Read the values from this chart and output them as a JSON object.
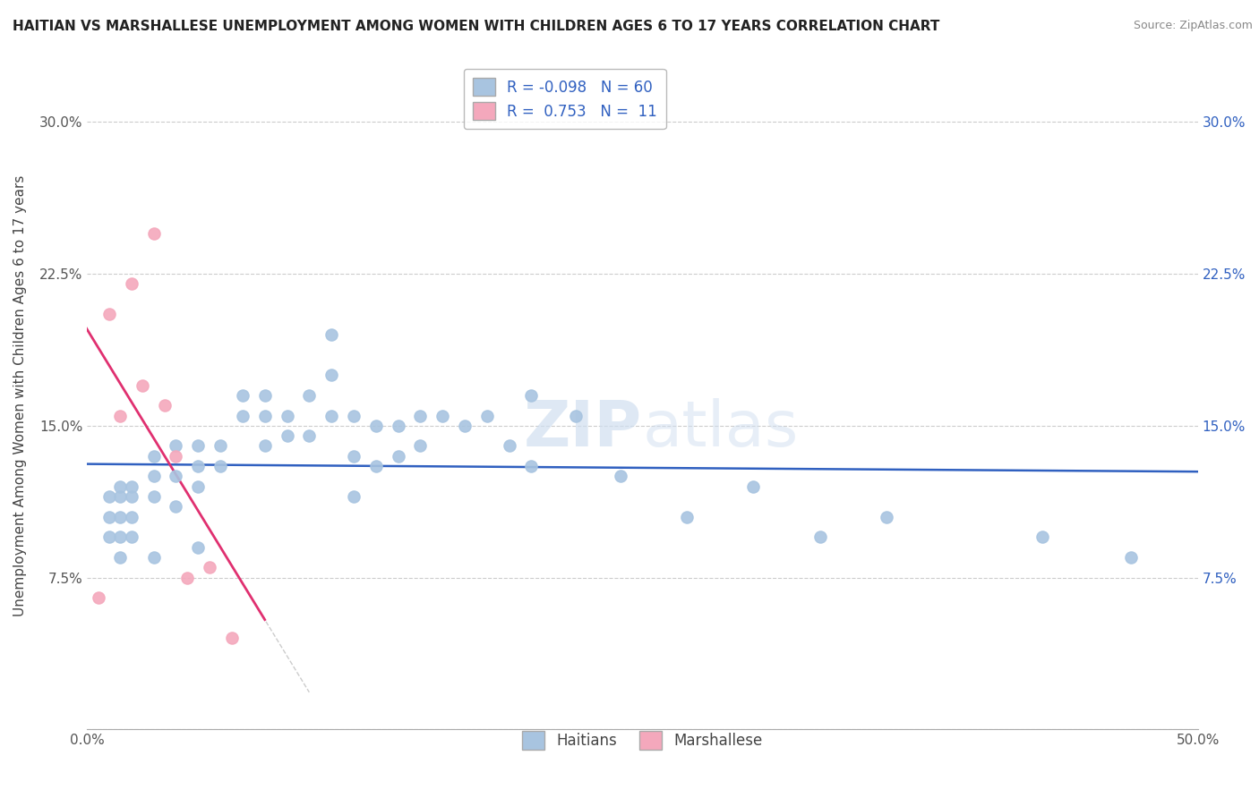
{
  "title": "HAITIAN VS MARSHALLESE UNEMPLOYMENT AMONG WOMEN WITH CHILDREN AGES 6 TO 17 YEARS CORRELATION CHART",
  "source": "Source: ZipAtlas.com",
  "ylabel": "Unemployment Among Women with Children Ages 6 to 17 years",
  "xlim": [
    0.0,
    0.5
  ],
  "ylim": [
    0.0,
    0.33
  ],
  "xticks": [
    0.0,
    0.1,
    0.2,
    0.3,
    0.4,
    0.5
  ],
  "xticklabels": [
    "0.0%",
    "",
    "",
    "",
    "",
    "50.0%"
  ],
  "yticks": [
    0.0,
    0.075,
    0.15,
    0.225,
    0.3
  ],
  "yticklabels": [
    "",
    "7.5%",
    "15.0%",
    "22.5%",
    "30.0%"
  ],
  "legend_r_haitian": "-0.098",
  "legend_n_haitian": "60",
  "legend_r_marshallese": "0.753",
  "legend_n_marshallese": "11",
  "haitian_color": "#a8c4e0",
  "marshallese_color": "#f4a8bc",
  "haitian_line_color": "#3060c0",
  "marshallese_line_color": "#e03070",
  "haitian_scatter_x": [
    0.01,
    0.01,
    0.01,
    0.015,
    0.015,
    0.015,
    0.015,
    0.015,
    0.02,
    0.02,
    0.02,
    0.02,
    0.03,
    0.03,
    0.03,
    0.03,
    0.04,
    0.04,
    0.04,
    0.05,
    0.05,
    0.05,
    0.05,
    0.06,
    0.06,
    0.07,
    0.07,
    0.08,
    0.08,
    0.08,
    0.09,
    0.09,
    0.1,
    0.1,
    0.11,
    0.11,
    0.11,
    0.12,
    0.12,
    0.12,
    0.13,
    0.13,
    0.14,
    0.14,
    0.15,
    0.15,
    0.16,
    0.17,
    0.18,
    0.19,
    0.2,
    0.2,
    0.22,
    0.24,
    0.27,
    0.3,
    0.33,
    0.36,
    0.43,
    0.47
  ],
  "haitian_scatter_y": [
    0.115,
    0.105,
    0.095,
    0.12,
    0.115,
    0.105,
    0.095,
    0.085,
    0.12,
    0.115,
    0.105,
    0.095,
    0.135,
    0.125,
    0.115,
    0.085,
    0.14,
    0.125,
    0.11,
    0.14,
    0.13,
    0.12,
    0.09,
    0.14,
    0.13,
    0.165,
    0.155,
    0.165,
    0.155,
    0.14,
    0.155,
    0.145,
    0.165,
    0.145,
    0.195,
    0.175,
    0.155,
    0.155,
    0.135,
    0.115,
    0.15,
    0.13,
    0.15,
    0.135,
    0.155,
    0.14,
    0.155,
    0.15,
    0.155,
    0.14,
    0.165,
    0.13,
    0.155,
    0.125,
    0.105,
    0.12,
    0.095,
    0.105,
    0.095,
    0.085
  ],
  "marshallese_scatter_x": [
    0.005,
    0.01,
    0.015,
    0.02,
    0.025,
    0.03,
    0.035,
    0.04,
    0.045,
    0.055,
    0.065
  ],
  "marshallese_scatter_y": [
    0.065,
    0.205,
    0.155,
    0.22,
    0.17,
    0.245,
    0.16,
    0.135,
    0.075,
    0.08,
    0.045
  ]
}
